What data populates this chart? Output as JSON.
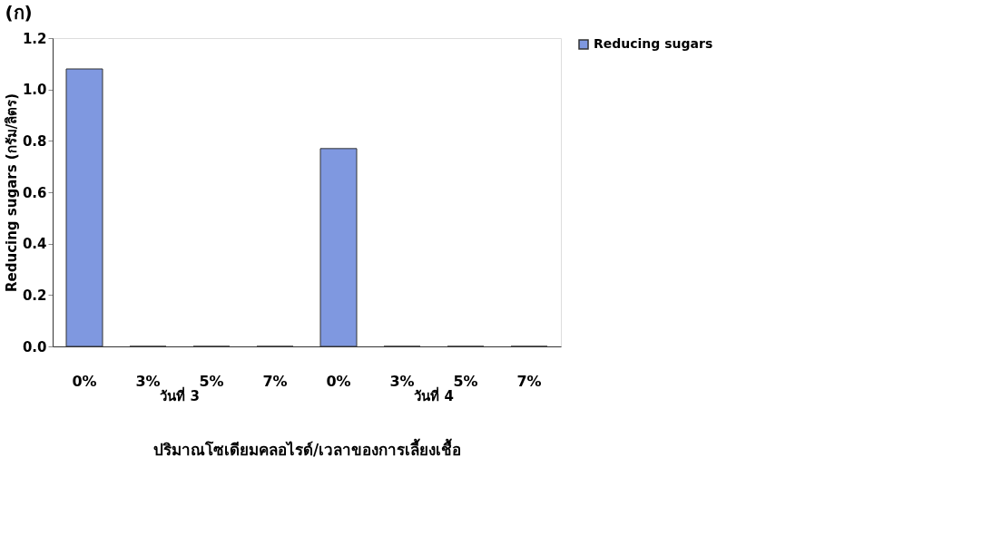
{
  "chart_data": {
    "type": "bar",
    "title": "(ก)",
    "xlabel": "ปริมาณโซเดียมคลอไรด์/เวลาของการเลี้ยงเชื้อ",
    "ylabel": "Reducing sugars (กรัม/ลิตร)",
    "categories": [
      "0%",
      "3%",
      "5%",
      "7%",
      "0%",
      "3%",
      "5%",
      "7%"
    ],
    "series": [
      {
        "name": "Reducing sugars",
        "color": "#7f98e0",
        "values": [
          1.08,
          0,
          0,
          0,
          0.77,
          0,
          0,
          0
        ]
      }
    ],
    "ylim": [
      0,
      1.2
    ],
    "yticks": [
      {
        "value": 0,
        "label": "0.0"
      },
      {
        "value": 0.2,
        "label": "0.2"
      },
      {
        "value": 0.4,
        "label": "0.4"
      },
      {
        "value": 0.6,
        "label": "0.6"
      },
      {
        "value": 0.8,
        "label": "0.8"
      },
      {
        "value": 1,
        "label": "1.0"
      },
      {
        "value": 1.2,
        "label": "1.2"
      }
    ],
    "annotations": [
      "วันที่ 3",
      "วันที่ 4"
    ],
    "legend": "top right",
    "grid": false
  }
}
